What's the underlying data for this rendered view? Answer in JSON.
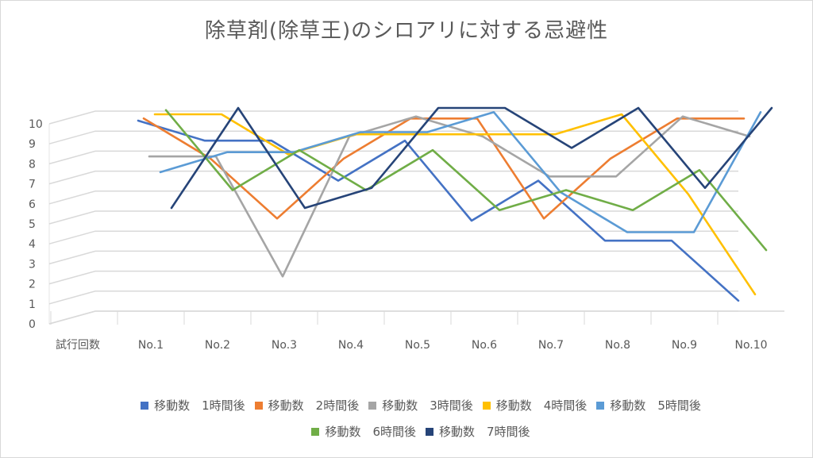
{
  "chart_data": {
    "type": "line",
    "title": "除草剤(除草王)のシロアリに対する忌避性",
    "xlabel": "試行回数",
    "ylabel": "",
    "ylim": [
      0,
      10
    ],
    "yticks": [
      "0",
      "1",
      "2",
      "3",
      "4",
      "5",
      "6",
      "7",
      "8",
      "9",
      "10"
    ],
    "categories": [
      "No.1",
      "No.2",
      "No.3",
      "No.4",
      "No.5",
      "No.6",
      "No.7",
      "No.8",
      "No.9",
      "No.10"
    ],
    "legend_position": "bottom",
    "grid": true,
    "series": [
      {
        "name": "移動数　1時間後",
        "color": "#4472C4",
        "values": [
          10,
          9,
          9,
          7,
          9,
          5,
          7,
          4,
          4,
          1
        ]
      },
      {
        "name": "移動数　2時間後",
        "color": "#ED7D31",
        "values": [
          10,
          8,
          5,
          8,
          10,
          10,
          5,
          8,
          10,
          10
        ]
      },
      {
        "name": "移動数　3時間後",
        "color": "#A5A5A5",
        "values": [
          8,
          8,
          2,
          9,
          10,
          9,
          7,
          7,
          10,
          9
        ]
      },
      {
        "name": "移動数　4時間後",
        "color": "#FFC000",
        "values": [
          10,
          10,
          8,
          9,
          9,
          9,
          9,
          10,
          6,
          1
        ]
      },
      {
        "name": "移動数　5時間後",
        "color": "#5B9BD5",
        "values": [
          7,
          8,
          8,
          9,
          9,
          10,
          6,
          4,
          4,
          10
        ]
      },
      {
        "name": "移動数　6時間後",
        "color": "#70AD47",
        "values": [
          10,
          6,
          8,
          6,
          8,
          5,
          6,
          5,
          7,
          3
        ]
      },
      {
        "name": "移動数　7時間後",
        "color": "#264478",
        "values": [
          5,
          10,
          5,
          6,
          10,
          10,
          8,
          10,
          6,
          10
        ]
      }
    ]
  }
}
